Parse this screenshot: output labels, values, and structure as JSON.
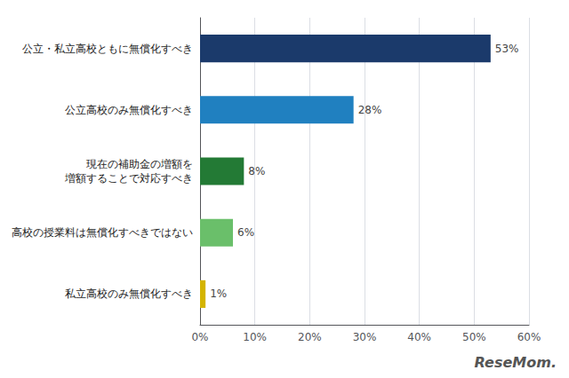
{
  "chart_data": {
    "type": "bar",
    "orientation": "horizontal",
    "categories": [
      "公立・私立高校ともに無償化すべき",
      "公立高校のみ無償化すべき",
      "現在の補助金の増額を\n増額することで対応すべき",
      "高校の授業料は無償化すべきではない",
      "私立高校のみ無償化すべき"
    ],
    "values": [
      53,
      28,
      8,
      6,
      1
    ],
    "value_labels": [
      "53%",
      "28%",
      "8%",
      "6%",
      "1%"
    ],
    "data_labels": true,
    "colors": [
      "#1b3a6b",
      "#2080c0",
      "#237a35",
      "#6abf6a",
      "#d4b400"
    ],
    "xlim": [
      0,
      60
    ],
    "xticks": [
      {
        "value": 0,
        "label": "0%"
      },
      {
        "value": 10,
        "label": "10%"
      },
      {
        "value": 20,
        "label": "20%"
      },
      {
        "value": 30,
        "label": "30%"
      },
      {
        "value": 40,
        "label": "40%"
      },
      {
        "value": 50,
        "label": "50%"
      },
      {
        "value": 60,
        "label": "60%"
      }
    ],
    "grid": true,
    "annotation": "ReseMom."
  }
}
